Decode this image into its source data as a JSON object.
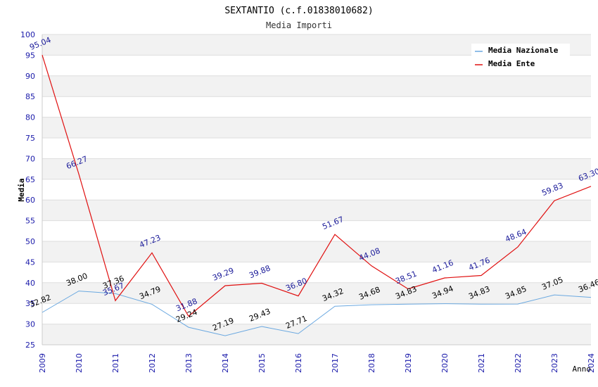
{
  "chart_data": {
    "type": "line",
    "title": "SEXTANTIO (c.f.01838010682)",
    "subtitle": "Media Importi",
    "xlabel": "Anno",
    "ylabel": "Media",
    "ylim": [
      25,
      100
    ],
    "yticks": [
      25,
      30,
      35,
      40,
      45,
      50,
      55,
      60,
      65,
      70,
      75,
      80,
      85,
      90,
      95,
      100
    ],
    "categories": [
      "2009",
      "2010",
      "2011",
      "2012",
      "2013",
      "2014",
      "2015",
      "2016",
      "2017",
      "2018",
      "2019",
      "2020",
      "2021",
      "2022",
      "2023",
      "2024"
    ],
    "grid": "horizontal bands",
    "legend_position": "top-right",
    "series": [
      {
        "name": "Media Nazionale",
        "color": "#6aa8e0",
        "label_color": "#000000",
        "values": [
          32.82,
          38.0,
          37.36,
          34.79,
          29.24,
          27.19,
          29.43,
          27.71,
          34.32,
          34.68,
          34.83,
          34.94,
          34.83,
          34.85,
          37.05,
          36.46
        ],
        "labels": [
          "32.82",
          "38.00",
          "37.36",
          "34.79",
          "29.24",
          "27.19",
          "29.43",
          "27.71",
          "34.32",
          "34.68",
          "34.83",
          "34.94",
          "34.83",
          "34.85",
          "37.05",
          "36.46"
        ]
      },
      {
        "name": "Media Ente",
        "color": "#e01010",
        "label_color": "#1a1a99",
        "values": [
          95.04,
          66.27,
          35.67,
          47.23,
          31.88,
          39.29,
          39.88,
          36.8,
          51.67,
          44.08,
          38.51,
          41.16,
          41.76,
          48.64,
          59.83,
          63.3
        ],
        "labels": [
          "95.04",
          "66.27",
          "35.67",
          "47.23",
          "31.88",
          "39.29",
          "39.88",
          "36.80",
          "51.67",
          "44.08",
          "38.51",
          "41.16",
          "41.76",
          "48.64",
          "59.83",
          "63.30"
        ]
      }
    ]
  }
}
